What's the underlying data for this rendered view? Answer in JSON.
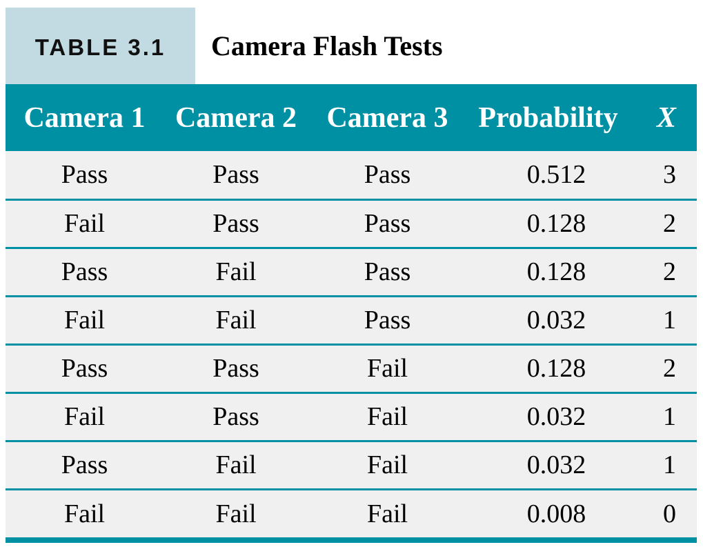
{
  "caption": {
    "label": "TABLE 3.1",
    "title": "Camera Flash Tests"
  },
  "table": {
    "headers": [
      "Camera 1",
      "Camera 2",
      "Camera 3",
      "Probability",
      "X"
    ],
    "rows": [
      [
        "Pass",
        "Pass",
        "Pass",
        "0.512",
        "3"
      ],
      [
        "Fail",
        "Pass",
        "Pass",
        "0.128",
        "2"
      ],
      [
        "Pass",
        "Fail",
        "Pass",
        "0.128",
        "2"
      ],
      [
        "Fail",
        "Fail",
        "Pass",
        "0.032",
        "1"
      ],
      [
        "Pass",
        "Pass",
        "Fail",
        "0.128",
        "2"
      ],
      [
        "Fail",
        "Pass",
        "Fail",
        "0.032",
        "1"
      ],
      [
        "Pass",
        "Fail",
        "Fail",
        "0.032",
        "1"
      ],
      [
        "Fail",
        "Fail",
        "Fail",
        "0.008",
        "0"
      ]
    ]
  },
  "colors": {
    "header_background": "#0090a3",
    "label_background": "#c2dbe2",
    "row_background": "#f0f0f0"
  }
}
